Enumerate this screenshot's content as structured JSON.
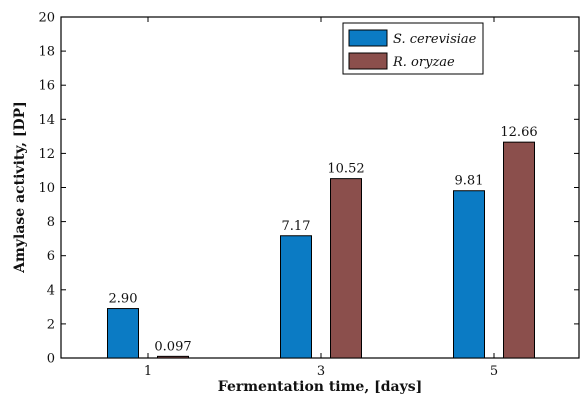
{
  "chart_data": {
    "type": "bar",
    "title": "",
    "xlabel": "Fermentation time, [days]",
    "ylabel": "Amylase activity, [DP]",
    "categories": [
      "1",
      "3",
      "5"
    ],
    "ylim": [
      0,
      20
    ],
    "yticks": [
      0,
      2,
      4,
      6,
      8,
      10,
      12,
      14,
      16,
      18,
      20
    ],
    "grid": false,
    "legend_position": "top-right",
    "series": [
      {
        "name": "S. cerevisiae",
        "color": "#0b7bc4",
        "values": [
          2.9,
          7.17,
          9.81
        ],
        "labels": [
          "2.90",
          "7.17",
          "9.81"
        ]
      },
      {
        "name": "R. oryzae",
        "color": "#8b4f4c",
        "values": [
          0.097,
          10.52,
          12.66
        ],
        "labels": [
          "0.097",
          "10.52",
          "12.66"
        ]
      }
    ]
  }
}
